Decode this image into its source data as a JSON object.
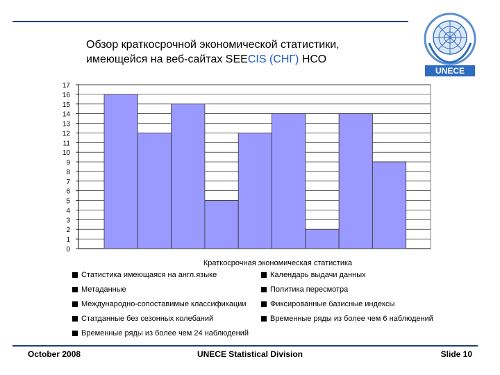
{
  "title": {
    "line1": "Обзор краткосрочной экономической статистики,",
    "line2_pre": "имеющейся на веб-сайтах SEE",
    "line2_cis": "CIS (СНГ)",
    "line2_post": " НСО"
  },
  "logo": {
    "icon": "un-emblem-icon",
    "label": "UNECE"
  },
  "colors": {
    "accent": "#1f3f73",
    "bar_fill": "#9999ff",
    "bar_stroke": "#333333",
    "title_blue": "#1f56c9"
  },
  "chart_data": {
    "type": "bar",
    "values": [
      16,
      12,
      15,
      5,
      12,
      14,
      2,
      14,
      9
    ],
    "xlabel": "Краткосрочная экономическая статистика",
    "ylabel": "",
    "ylim": [
      0,
      17
    ],
    "yticks": [
      "0",
      "1",
      "2",
      "3",
      "4",
      "5",
      "6",
      "7",
      "8",
      "9",
      "10",
      "11",
      "12",
      "13",
      "14",
      "15",
      "16",
      "17"
    ],
    "grid": true,
    "legend": [
      "Статистика имеющаяся на англ.языке",
      "Календарь выдачи данных",
      "Метаданные",
      "Политика пересмотра",
      "Международно-сопоставимые классификации",
      "Фиксированные базисные индексы",
      "Статданные без сезонных колебаний",
      "Временные ряды из более чем 6 наблюдений",
      "Временные ряды из более чем 24 наблюдений"
    ]
  },
  "footer": {
    "left": "October 2008",
    "center": "UNECE Statistical Division",
    "right": "Slide 10"
  }
}
